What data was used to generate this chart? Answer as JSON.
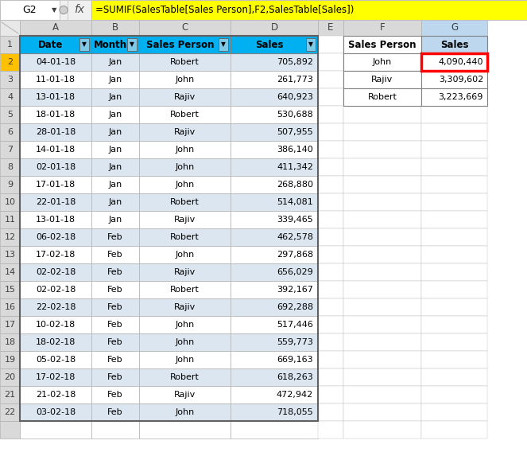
{
  "formula_bar_cell": "G2",
  "formula_bar_formula": "=SUMIF(SalesTable[Sales Person],F2,SalesTable[Sales])",
  "main_headers": [
    "Date",
    "Month",
    "Sales Person",
    "Sales"
  ],
  "main_header_bg": "#00B0F0",
  "summary_headers": [
    "Sales Person",
    "Sales"
  ],
  "row_bg_even": "#DCE6F1",
  "row_bg_odd": "#FFFFFF",
  "main_data": [
    [
      "04-01-18",
      "Jan",
      "Robert",
      "705,892"
    ],
    [
      "11-01-18",
      "Jan",
      "John",
      "261,773"
    ],
    [
      "13-01-18",
      "Jan",
      "Rajiv",
      "640,923"
    ],
    [
      "18-01-18",
      "Jan",
      "Robert",
      "530,688"
    ],
    [
      "28-01-18",
      "Jan",
      "Rajiv",
      "507,955"
    ],
    [
      "14-01-18",
      "Jan",
      "John",
      "386,140"
    ],
    [
      "02-01-18",
      "Jan",
      "John",
      "411,342"
    ],
    [
      "17-01-18",
      "Jan",
      "John",
      "268,880"
    ],
    [
      "22-01-18",
      "Jan",
      "Robert",
      "514,081"
    ],
    [
      "13-01-18",
      "Jan",
      "Rajiv",
      "339,465"
    ],
    [
      "06-02-18",
      "Feb",
      "Robert",
      "462,578"
    ],
    [
      "17-02-18",
      "Feb",
      "John",
      "297,868"
    ],
    [
      "02-02-18",
      "Feb",
      "Rajiv",
      "656,029"
    ],
    [
      "02-02-18",
      "Feb",
      "Robert",
      "392,167"
    ],
    [
      "22-02-18",
      "Feb",
      "Rajiv",
      "692,288"
    ],
    [
      "10-02-18",
      "Feb",
      "John",
      "517,446"
    ],
    [
      "18-02-18",
      "Feb",
      "John",
      "559,773"
    ],
    [
      "05-02-18",
      "Feb",
      "John",
      "669,163"
    ],
    [
      "17-02-18",
      "Feb",
      "Robert",
      "618,263"
    ],
    [
      "21-02-18",
      "Feb",
      "Rajiv",
      "472,942"
    ],
    [
      "03-02-18",
      "Feb",
      "John",
      "718,055"
    ]
  ],
  "summary_data": [
    [
      "John",
      "4,090,440"
    ],
    [
      "Rajiv",
      "3,309,602"
    ],
    [
      "Robert",
      "3,223,669"
    ]
  ],
  "formula_bg": "#FFFF00",
  "header_col_bg": "#D9D9D9",
  "selected_header_bg": "#BDD7EE",
  "selected_row_bg": "#FFC000",
  "highlighted_border": "#FF0000",
  "col_letters": [
    "A",
    "B",
    "C",
    "D",
    "E",
    "F",
    "G"
  ],
  "formula_bar_bg": "#F2F2F2",
  "outer_bg": "#F0F0F0"
}
